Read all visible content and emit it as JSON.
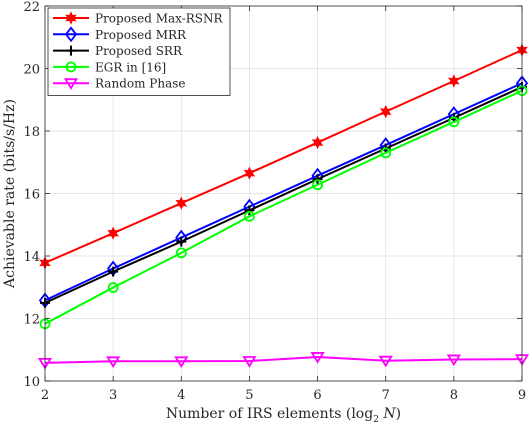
{
  "chart_data": {
    "type": "line",
    "xlabel": "Number of IRS elements (log",
    "xlabel_sub": "2",
    "xlabel_var": "N",
    "xlabel_close": ")",
    "ylabel": "Achievable rate (bits/s/Hz)",
    "xlim": [
      2,
      9
    ],
    "ylim": [
      10,
      22
    ],
    "xticks": [
      2,
      3,
      4,
      5,
      6,
      7,
      8,
      9
    ],
    "yticks": [
      10,
      12,
      14,
      16,
      18,
      20,
      22
    ],
    "grid": true,
    "legend_position": "top-left",
    "x": [
      2,
      3,
      4,
      5,
      6,
      7,
      8,
      9
    ],
    "series": [
      {
        "name": "Proposed Max-RSNR",
        "color": "#ff0000",
        "marker": "hexagram",
        "values": [
          13.78,
          14.73,
          15.69,
          16.65,
          17.63,
          18.62,
          19.6,
          20.59
        ]
      },
      {
        "name": "Proposed MRR",
        "color": "#0000ff",
        "marker": "diamond",
        "values": [
          12.58,
          13.6,
          14.59,
          15.58,
          16.57,
          17.55,
          18.54,
          19.53
        ]
      },
      {
        "name": "Proposed SRR",
        "color": "#000000",
        "marker": "plus",
        "values": [
          12.5,
          13.5,
          14.46,
          15.46,
          16.46,
          17.44,
          18.42,
          19.41
        ]
      },
      {
        "name": "EGR in [16]",
        "color": "#00ff00",
        "marker": "circle",
        "values": [
          11.83,
          12.99,
          14.1,
          15.27,
          16.28,
          17.3,
          18.29,
          19.29
        ]
      },
      {
        "name": "Random Phase",
        "color": "#ff00ff",
        "marker": "triangle-down",
        "values": [
          10.58,
          10.63,
          10.63,
          10.64,
          10.77,
          10.65,
          10.69,
          10.7
        ]
      }
    ]
  }
}
